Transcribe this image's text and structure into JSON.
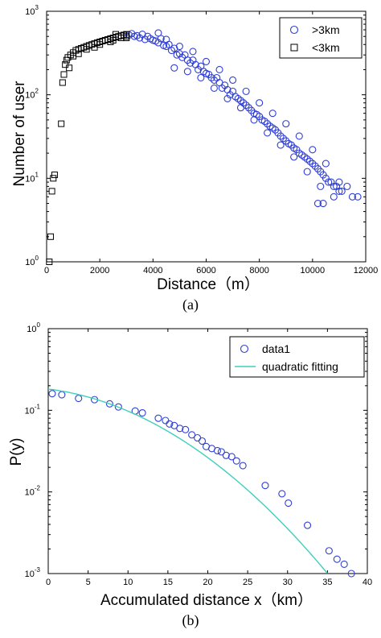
{
  "chart_data": [
    {
      "type": "scatter",
      "panel_label": "(a)",
      "xlabel": "Distance（m）",
      "ylabel": "Number of user",
      "xlim": [
        0,
        12000
      ],
      "ylim": [
        1,
        1000
      ],
      "yscale": "log",
      "xticks": [
        "0",
        "2000",
        "4000",
        "6000",
        "8000",
        "10000",
        "12000"
      ],
      "yticks": [
        {
          "base": "10",
          "exp": "0"
        },
        {
          "base": "10",
          "exp": "1"
        },
        {
          "base": "10",
          "exp": "2"
        },
        {
          "base": "10",
          "exp": "3"
        }
      ],
      "legend": {
        "placement": "top-right"
      },
      "series": [
        {
          "name": ">3km",
          "marker": "circle",
          "color": "#2f3fd6",
          "points": [
            [
              3100,
              520
            ],
            [
              3200,
              540
            ],
            [
              3300,
              500
            ],
            [
              3400,
              510
            ],
            [
              3500,
              480
            ],
            [
              3600,
              530
            ],
            [
              3700,
              460
            ],
            [
              3800,
              500
            ],
            [
              3900,
              470
            ],
            [
              4000,
              450
            ],
            [
              4100,
              440
            ],
            [
              4200,
              420
            ],
            [
              4300,
              470
            ],
            [
              4400,
              390
            ],
            [
              4500,
              380
            ],
            [
              4600,
              400
            ],
            [
              4700,
              340
            ],
            [
              4800,
              360
            ],
            [
              4900,
              300
            ],
            [
              5000,
              310
            ],
            [
              5100,
              280
            ],
            [
              5200,
              300
            ],
            [
              5300,
              260
            ],
            [
              5400,
              240
            ],
            [
              5500,
              260
            ],
            [
              5600,
              230
            ],
            [
              5700,
              200
            ],
            [
              5800,
              220
            ],
            [
              5900,
              190
            ],
            [
              6000,
              180
            ],
            [
              6100,
              175
            ],
            [
              6200,
              160
            ],
            [
              6300,
              150
            ],
            [
              6400,
              160
            ],
            [
              6500,
              140
            ],
            [
              6600,
              120
            ],
            [
              6700,
              130
            ],
            [
              6800,
              115
            ],
            [
              6900,
              100
            ],
            [
              7000,
              110
            ],
            [
              7100,
              95
            ],
            [
              7200,
              90
            ],
            [
              7300,
              85
            ],
            [
              7400,
              80
            ],
            [
              7500,
              75
            ],
            [
              7600,
              70
            ],
            [
              7700,
              65
            ],
            [
              7800,
              60
            ],
            [
              7900,
              58
            ],
            [
              8000,
              55
            ],
            [
              8100,
              50
            ],
            [
              8200,
              48
            ],
            [
              8300,
              45
            ],
            [
              8400,
              42
            ],
            [
              8500,
              40
            ],
            [
              8600,
              38
            ],
            [
              8700,
              35
            ],
            [
              8800,
              32
            ],
            [
              8900,
              30
            ],
            [
              9000,
              28
            ],
            [
              9100,
              26
            ],
            [
              9200,
              25
            ],
            [
              9300,
              23
            ],
            [
              9400,
              22
            ],
            [
              9500,
              20
            ],
            [
              9600,
              19
            ],
            [
              9700,
              18
            ],
            [
              9800,
              17
            ],
            [
              9900,
              16
            ],
            [
              10000,
              15
            ],
            [
              10100,
              14
            ],
            [
              10200,
              13
            ],
            [
              10300,
              12
            ],
            [
              10400,
              11
            ],
            [
              10500,
              10
            ],
            [
              10600,
              9
            ],
            [
              10700,
              9
            ],
            [
              10800,
              8
            ],
            [
              10900,
              8
            ],
            [
              11000,
              7
            ],
            [
              11100,
              7
            ],
            [
              11300,
              8
            ],
            [
              11500,
              6
            ],
            [
              11700,
              6
            ],
            [
              4200,
              550
            ],
            [
              4500,
              460
            ],
            [
              5000,
              380
            ],
            [
              5500,
              330
            ],
            [
              6000,
              250
            ],
            [
              6500,
              200
            ],
            [
              7000,
              150
            ],
            [
              7500,
              110
            ],
            [
              8000,
              80
            ],
            [
              8500,
              60
            ],
            [
              9000,
              45
            ],
            [
              9500,
              32
            ],
            [
              10000,
              22
            ],
            [
              10500,
              15
            ],
            [
              11000,
              9
            ],
            [
              4800,
              210
            ],
            [
              5300,
              190
            ],
            [
              5800,
              160
            ],
            [
              6300,
              120
            ],
            [
              6800,
              90
            ],
            [
              7300,
              70
            ],
            [
              7800,
              50
            ],
            [
              8300,
              35
            ],
            [
              8800,
              25
            ],
            [
              9300,
              18
            ],
            [
              9800,
              12
            ],
            [
              10300,
              8
            ],
            [
              10800,
              6
            ],
            [
              10200,
              5
            ],
            [
              10400,
              5
            ]
          ]
        },
        {
          "name": "<3km",
          "marker": "square",
          "color": "#000000",
          "points": [
            [
              100,
              1
            ],
            [
              150,
              2
            ],
            [
              200,
              7
            ],
            [
              250,
              10
            ],
            [
              300,
              11
            ],
            [
              550,
              45
            ],
            [
              600,
              140
            ],
            [
              650,
              175
            ],
            [
              700,
              230
            ],
            [
              750,
              260
            ],
            [
              800,
              280
            ],
            [
              900,
              300
            ],
            [
              1000,
              320
            ],
            [
              1100,
              340
            ],
            [
              1200,
              350
            ],
            [
              1300,
              360
            ],
            [
              1400,
              370
            ],
            [
              1500,
              380
            ],
            [
              1600,
              390
            ],
            [
              1700,
              400
            ],
            [
              1800,
              410
            ],
            [
              1900,
              420
            ],
            [
              2000,
              430
            ],
            [
              2100,
              440
            ],
            [
              2200,
              450
            ],
            [
              2300,
              460
            ],
            [
              2400,
              470
            ],
            [
              2500,
              480
            ],
            [
              2600,
              490
            ],
            [
              2700,
              500
            ],
            [
              2800,
              510
            ],
            [
              2900,
              520
            ],
            [
              3000,
              530
            ],
            [
              1000,
              290
            ],
            [
              1500,
              350
            ],
            [
              2000,
              400
            ],
            [
              2500,
              450
            ],
            [
              3000,
              480
            ],
            [
              850,
              210
            ],
            [
              1200,
              310
            ],
            [
              1800,
              370
            ],
            [
              2400,
              430
            ],
            [
              2800,
              480
            ],
            [
              2600,
              530
            ],
            [
              3000,
              500
            ]
          ]
        }
      ]
    },
    {
      "type": "scatter",
      "panel_label": "(b)",
      "xlabel": "Accumulated distance x（km）",
      "ylabel": "P(y)",
      "xlim": [
        0,
        40
      ],
      "ylim": [
        0.001,
        1
      ],
      "yscale": "log",
      "xticks": [
        "0",
        "5",
        "10",
        "15",
        "20",
        "25",
        "30",
        "35",
        "40"
      ],
      "yticks": [
        {
          "base": "10",
          "exp": "-3"
        },
        {
          "base": "10",
          "exp": "-2"
        },
        {
          "base": "10",
          "exp": "-1"
        },
        {
          "base": "10",
          "exp": "0"
        }
      ],
      "legend": {
        "placement": "top-right"
      },
      "series": [
        {
          "name": "data1",
          "marker": "circle",
          "color": "#2f3fd6",
          "points": [
            [
              0.5,
              0.16
            ],
            [
              1.7,
              0.155
            ],
            [
              3.8,
              0.14
            ],
            [
              5.8,
              0.135
            ],
            [
              7.7,
              0.12
            ],
            [
              8.8,
              0.11
            ],
            [
              10.9,
              0.098
            ],
            [
              11.8,
              0.093
            ],
            [
              13.8,
              0.08
            ],
            [
              14.7,
              0.075
            ],
            [
              15.2,
              0.068
            ],
            [
              15.8,
              0.065
            ],
            [
              16.5,
              0.06
            ],
            [
              17.2,
              0.058
            ],
            [
              18.0,
              0.05
            ],
            [
              18.7,
              0.046
            ],
            [
              19.3,
              0.042
            ],
            [
              19.8,
              0.036
            ],
            [
              20.5,
              0.034
            ],
            [
              21.2,
              0.032
            ],
            [
              21.7,
              0.031
            ],
            [
              22.3,
              0.028
            ],
            [
              23.0,
              0.027
            ],
            [
              23.6,
              0.024
            ],
            [
              24.4,
              0.021
            ],
            [
              27.2,
              0.012
            ],
            [
              29.3,
              0.0095
            ],
            [
              30.1,
              0.0073
            ],
            [
              32.5,
              0.0039
            ],
            [
              35.2,
              0.0019
            ],
            [
              36.2,
              0.0015
            ],
            [
              37.1,
              0.0013
            ],
            [
              38.0,
              0.001
            ]
          ]
        },
        {
          "name": "quadratic fitting",
          "line": true,
          "color": "#3ecfbd",
          "curve": {
            "form": "log10(P) = a + b*x + c*x^2",
            "a": -0.74,
            "b": -0.012,
            "c": -0.0015,
            "x_range": [
              0,
              35
            ]
          }
        }
      ]
    }
  ]
}
